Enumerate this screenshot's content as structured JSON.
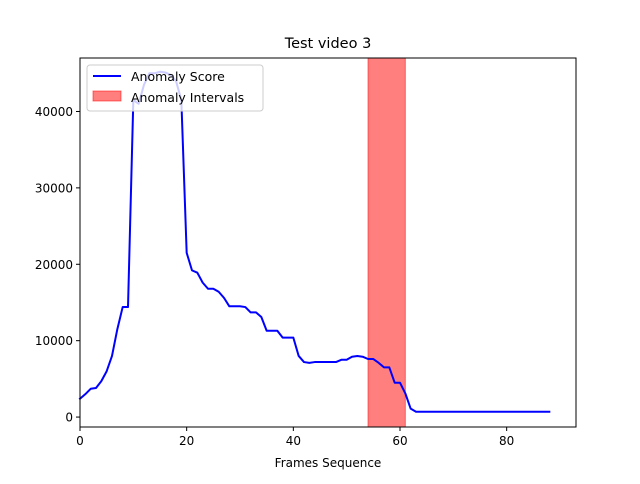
{
  "chart_data": {
    "type": "line",
    "title": "Test video 3",
    "xlabel": "Frames Sequence",
    "ylabel": "",
    "xlim": [
      0,
      93
    ],
    "ylim": [
      -1300,
      47000
    ],
    "xticks": [
      0,
      20,
      40,
      60,
      80
    ],
    "yticks": [
      0,
      10000,
      20000,
      30000,
      40000
    ],
    "grid": false,
    "legend_position": "top-left",
    "series": [
      {
        "name": "Anomaly Score",
        "color": "#0000ff",
        "x": [
          0,
          1,
          2,
          3,
          4,
          5,
          6,
          7,
          8,
          9,
          10,
          11,
          12,
          13,
          14,
          15,
          16,
          17,
          18,
          19,
          20,
          21,
          22,
          23,
          24,
          25,
          26,
          27,
          28,
          29,
          30,
          31,
          32,
          33,
          34,
          35,
          36,
          37,
          38,
          39,
          40,
          41,
          42,
          43,
          44,
          45,
          46,
          47,
          48,
          49,
          50,
          51,
          52,
          53,
          54,
          55,
          56,
          57,
          58,
          59,
          60,
          61,
          62,
          63,
          64,
          65,
          66,
          67,
          68,
          69,
          70,
          71,
          72,
          73,
          74,
          75,
          76,
          77,
          78,
          79,
          80,
          81,
          82,
          83,
          84,
          85,
          86,
          87,
          88
        ],
        "y": [
          2400,
          3000,
          3700,
          3800,
          4700,
          6000,
          8000,
          11500,
          14400,
          14400,
          41500,
          41000,
          43500,
          45000,
          45000,
          45200,
          45100,
          44800,
          44000,
          41500,
          21500,
          19200,
          18900,
          17600,
          16800,
          16800,
          16400,
          15600,
          14500,
          14500,
          14500,
          14400,
          13700,
          13700,
          13100,
          11300,
          11300,
          11300,
          10400,
          10400,
          10400,
          8000,
          7200,
          7100,
          7200,
          7200,
          7200,
          7200,
          7200,
          7500,
          7500,
          7900,
          8000,
          7900,
          7600,
          7600,
          7100,
          6500,
          6500,
          4500,
          4500,
          3100,
          1100,
          700,
          700,
          700,
          700,
          700,
          700,
          700,
          700,
          700,
          700,
          700,
          700,
          700,
          700,
          700,
          700,
          700,
          700,
          700,
          700,
          700,
          700,
          700,
          700,
          700,
          700
        ]
      }
    ],
    "intervals": [
      {
        "name": "Anomaly Intervals",
        "start": 54,
        "end": 61,
        "color": "#ff0000",
        "opacity": 0.5
      }
    ]
  }
}
